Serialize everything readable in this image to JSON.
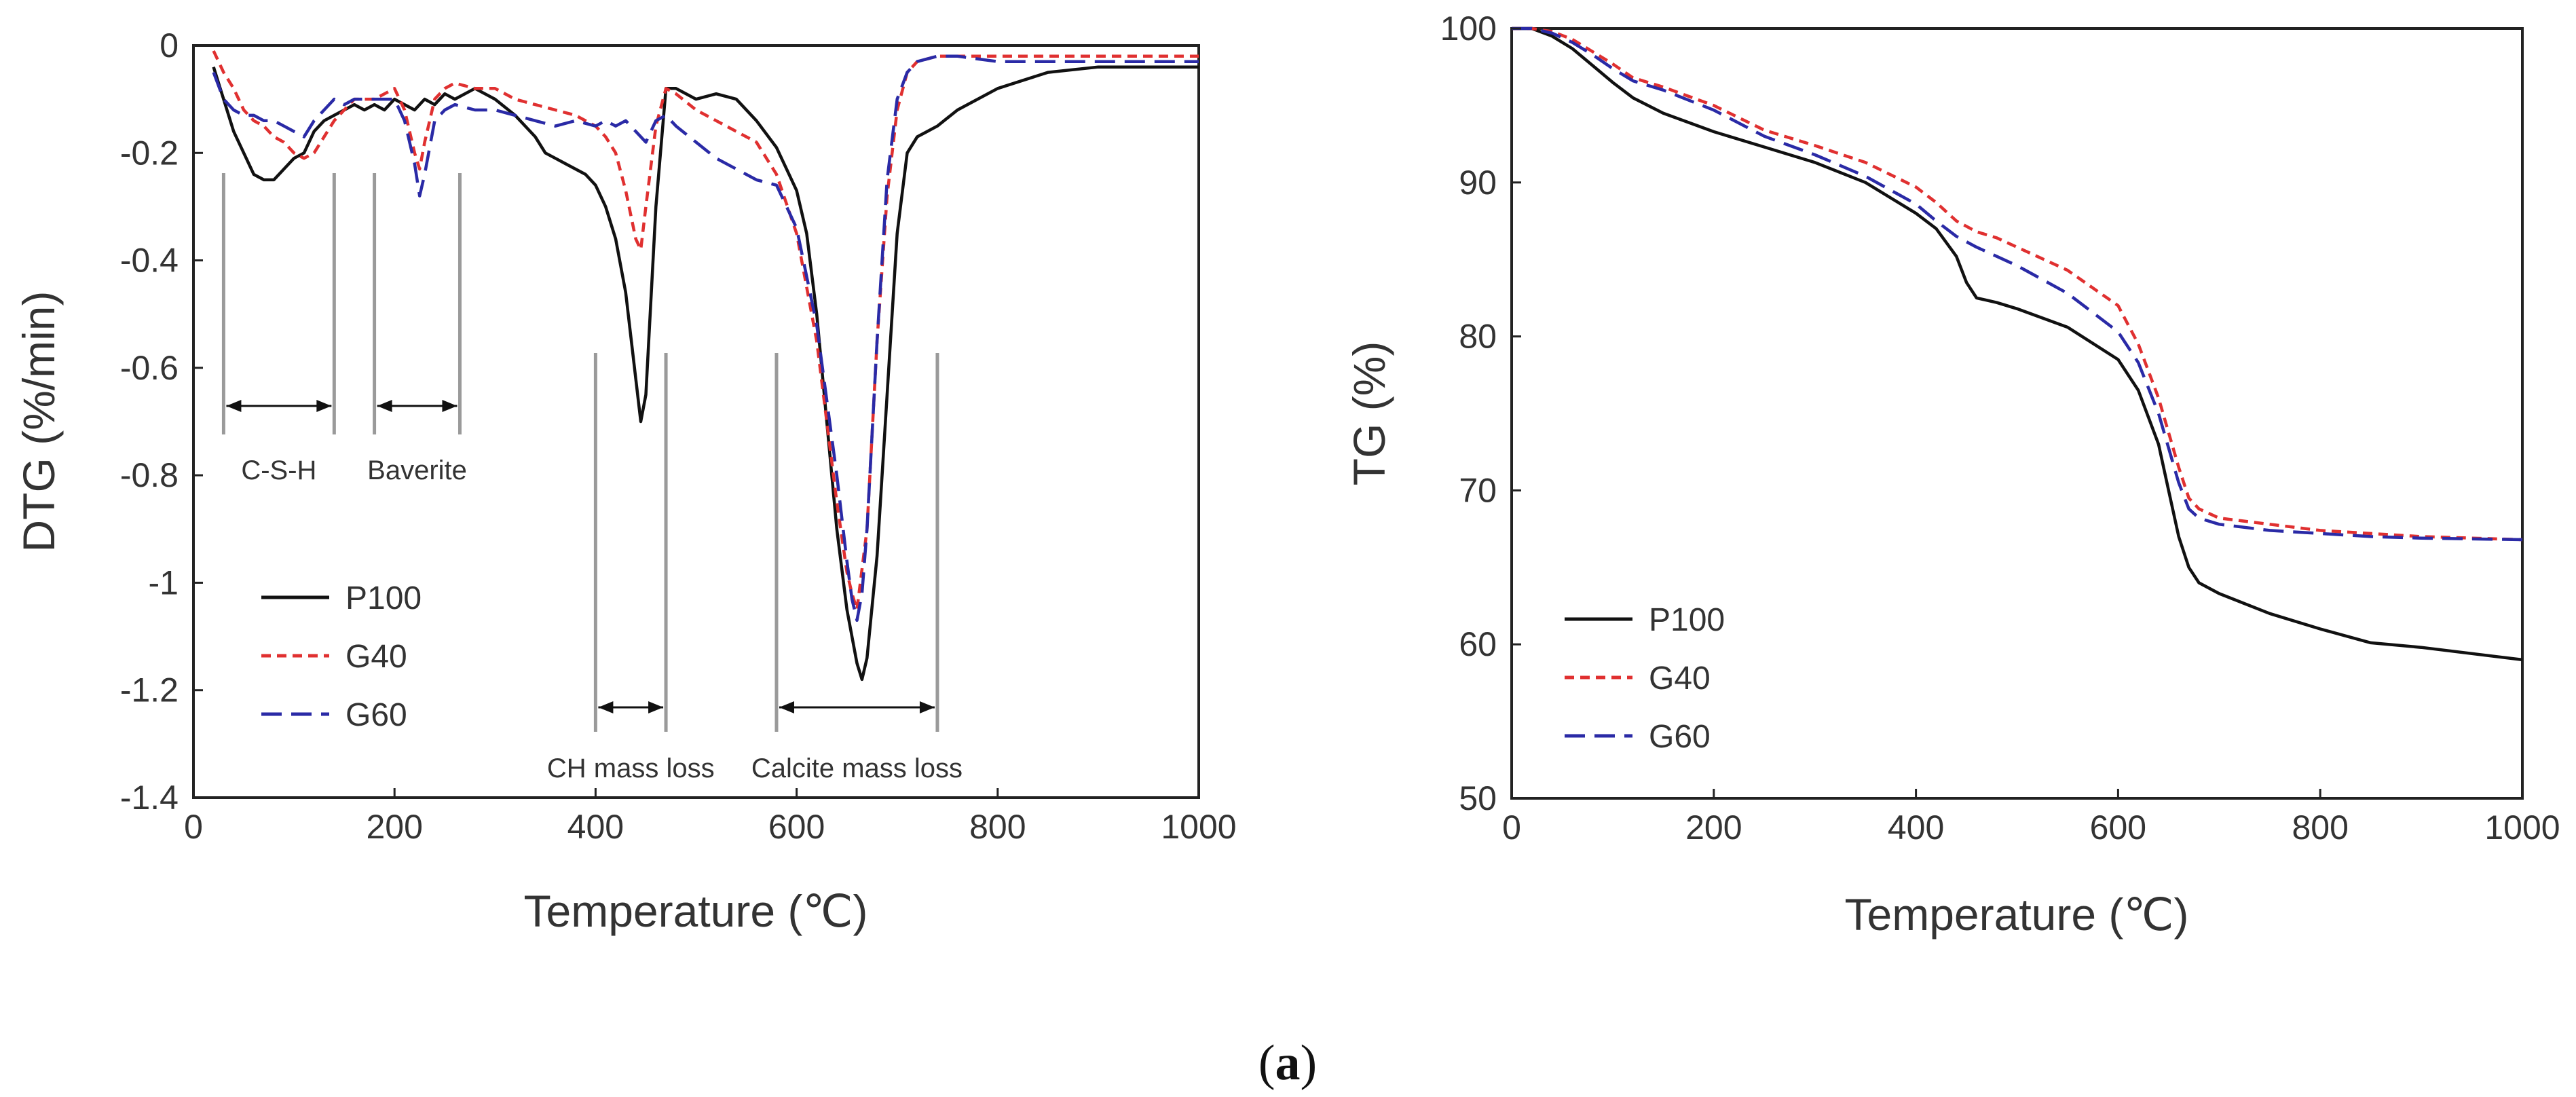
{
  "figure": {
    "caption_label": "a",
    "caption_open": "(",
    "caption_close": ")"
  },
  "chart_data": [
    {
      "type": "line",
      "panel": "left",
      "xlabel": "Temperature (℃)",
      "ylabel": "DTG (%/min)",
      "xlim": [
        0,
        1000
      ],
      "ylim": [
        -1.4,
        0
      ],
      "xticks": [
        0,
        200,
        400,
        600,
        800,
        1000
      ],
      "xtick_labels": [
        "0",
        "200",
        "400",
        "600",
        "800",
        "1000"
      ],
      "yticks": [
        0,
        -0.2,
        -0.4,
        -0.6,
        -0.8,
        -1,
        -1.2,
        -1.4
      ],
      "ytick_labels": [
        "0",
        "-0.2",
        "-0.4",
        "-0.6",
        "-0.8",
        "-1",
        "-1.2",
        "-1.4"
      ],
      "legend_placement": "bottom-left",
      "series": [
        {
          "name": "P100",
          "color": "#111111",
          "dash": "solid",
          "label": "P100",
          "x": [
            20,
            30,
            40,
            50,
            60,
            70,
            80,
            90,
            100,
            110,
            120,
            130,
            140,
            150,
            160,
            170,
            180,
            190,
            200,
            210,
            220,
            230,
            240,
            250,
            260,
            280,
            300,
            320,
            340,
            350,
            360,
            370,
            380,
            390,
            400,
            410,
            420,
            430,
            440,
            445,
            450,
            460,
            470,
            480,
            500,
            520,
            540,
            560,
            580,
            600,
            610,
            620,
            630,
            640,
            650,
            660,
            665,
            670,
            680,
            690,
            700,
            710,
            720,
            730,
            740,
            760,
            800,
            850,
            900,
            950,
            1000
          ],
          "y": [
            -0.04,
            -0.1,
            -0.16,
            -0.2,
            -0.24,
            -0.25,
            -0.25,
            -0.23,
            -0.21,
            -0.2,
            -0.16,
            -0.14,
            -0.13,
            -0.12,
            -0.11,
            -0.12,
            -0.11,
            -0.12,
            -0.1,
            -0.11,
            -0.12,
            -0.1,
            -0.11,
            -0.09,
            -0.1,
            -0.08,
            -0.1,
            -0.13,
            -0.17,
            -0.2,
            -0.21,
            -0.22,
            -0.23,
            -0.24,
            -0.26,
            -0.3,
            -0.36,
            -0.46,
            -0.62,
            -0.7,
            -0.65,
            -0.3,
            -0.08,
            -0.08,
            -0.1,
            -0.09,
            -0.1,
            -0.14,
            -0.19,
            -0.27,
            -0.35,
            -0.5,
            -0.7,
            -0.9,
            -1.05,
            -1.15,
            -1.18,
            -1.14,
            -0.95,
            -0.65,
            -0.35,
            -0.2,
            -0.17,
            -0.16,
            -0.15,
            -0.12,
            -0.08,
            -0.05,
            -0.04,
            -0.04,
            -0.04
          ]
        },
        {
          "name": "G40",
          "color": "#e03030",
          "dash": "short-dash",
          "label": "G40",
          "x": [
            20,
            30,
            40,
            50,
            60,
            70,
            80,
            90,
            100,
            110,
            120,
            130,
            140,
            150,
            160,
            180,
            200,
            210,
            220,
            225,
            230,
            240,
            250,
            260,
            280,
            300,
            320,
            340,
            360,
            380,
            400,
            410,
            420,
            430,
            440,
            445,
            450,
            460,
            470,
            480,
            500,
            520,
            540,
            560,
            580,
            600,
            620,
            640,
            650,
            655,
            660,
            670,
            680,
            690,
            700,
            710,
            720,
            740,
            760,
            800,
            850,
            900,
            950,
            1000
          ],
          "y": [
            -0.01,
            -0.05,
            -0.08,
            -0.12,
            -0.14,
            -0.15,
            -0.17,
            -0.18,
            -0.2,
            -0.21,
            -0.2,
            -0.17,
            -0.14,
            -0.12,
            -0.1,
            -0.1,
            -0.08,
            -0.12,
            -0.2,
            -0.23,
            -0.18,
            -0.1,
            -0.08,
            -0.07,
            -0.08,
            -0.08,
            -0.1,
            -0.11,
            -0.12,
            -0.13,
            -0.15,
            -0.17,
            -0.2,
            -0.27,
            -0.36,
            -0.38,
            -0.3,
            -0.15,
            -0.08,
            -0.09,
            -0.12,
            -0.14,
            -0.16,
            -0.18,
            -0.24,
            -0.35,
            -0.55,
            -0.85,
            -0.98,
            -1.02,
            -1.05,
            -0.9,
            -0.55,
            -0.28,
            -0.12,
            -0.05,
            -0.03,
            -0.02,
            -0.02,
            -0.02,
            -0.02,
            -0.02,
            -0.02,
            -0.02
          ]
        },
        {
          "name": "G60",
          "color": "#2a2aa6",
          "dash": "long-dash",
          "label": "G60",
          "x": [
            20,
            30,
            40,
            50,
            60,
            70,
            80,
            90,
            100,
            110,
            120,
            130,
            140,
            150,
            160,
            180,
            200,
            210,
            220,
            225,
            230,
            240,
            250,
            260,
            280,
            300,
            320,
            340,
            360,
            380,
            400,
            410,
            420,
            430,
            440,
            450,
            460,
            470,
            480,
            500,
            520,
            540,
            560,
            580,
            600,
            620,
            640,
            650,
            655,
            660,
            665,
            670,
            680,
            690,
            700,
            710,
            720,
            740,
            760,
            800,
            850,
            900,
            950,
            1000
          ],
          "y": [
            -0.05,
            -0.1,
            -0.12,
            -0.13,
            -0.13,
            -0.14,
            -0.14,
            -0.15,
            -0.16,
            -0.17,
            -0.14,
            -0.12,
            -0.1,
            -0.11,
            -0.1,
            -0.1,
            -0.1,
            -0.14,
            -0.22,
            -0.28,
            -0.24,
            -0.14,
            -0.12,
            -0.11,
            -0.12,
            -0.12,
            -0.13,
            -0.14,
            -0.15,
            -0.14,
            -0.15,
            -0.14,
            -0.15,
            -0.14,
            -0.16,
            -0.18,
            -0.14,
            -0.13,
            -0.15,
            -0.18,
            -0.21,
            -0.23,
            -0.25,
            -0.26,
            -0.34,
            -0.52,
            -0.8,
            -0.96,
            -1.03,
            -1.07,
            -1.02,
            -0.9,
            -0.55,
            -0.25,
            -0.1,
            -0.05,
            -0.03,
            -0.02,
            -0.02,
            -0.03,
            -0.03,
            -0.03,
            -0.03,
            -0.03
          ]
        }
      ],
      "annotations": [
        {
          "label": "C-S-H",
          "x_start": 30,
          "x_end": 140
        },
        {
          "label": "Baverite",
          "x_start": 180,
          "x_end": 265
        },
        {
          "label": "CH mass loss",
          "x_start": 400,
          "x_end": 470
        },
        {
          "label": "Calcite mass loss",
          "x_start": 580,
          "x_end": 740
        }
      ]
    },
    {
      "type": "line",
      "panel": "right",
      "xlabel": "Temperature (℃)",
      "ylabel": "TG (%)",
      "xlim": [
        0,
        1000
      ],
      "ylim": [
        50,
        100
      ],
      "xticks": [
        0,
        200,
        400,
        600,
        800,
        1000
      ],
      "xtick_labels": [
        "0",
        "200",
        "400",
        "600",
        "800",
        "1000"
      ],
      "yticks": [
        50,
        60,
        70,
        80,
        90,
        100
      ],
      "ytick_labels": [
        "50",
        "60",
        "70",
        "80",
        "90",
        "100"
      ],
      "legend_placement": "bottom-left",
      "series": [
        {
          "name": "P100",
          "color": "#111111",
          "dash": "solid",
          "label": "P100",
          "x": [
            0,
            20,
            40,
            60,
            80,
            100,
            120,
            150,
            200,
            250,
            300,
            350,
            400,
            420,
            440,
            450,
            460,
            480,
            500,
            550,
            600,
            620,
            640,
            650,
            660,
            670,
            680,
            700,
            750,
            800,
            850,
            900,
            1000
          ],
          "y": [
            100,
            100,
            99.5,
            98.7,
            97.6,
            96.5,
            95.5,
            94.5,
            93.3,
            92.3,
            91.3,
            90,
            88,
            87,
            85.2,
            83.5,
            82.5,
            82.2,
            81.8,
            80.6,
            78.5,
            76.5,
            73,
            70,
            67,
            65,
            64,
            63.3,
            62,
            61,
            60.1,
            59.8,
            59
          ]
        },
        {
          "name": "G40",
          "color": "#e03030",
          "dash": "short-dash",
          "label": "G40",
          "x": [
            0,
            20,
            40,
            60,
            80,
            100,
            120,
            150,
            200,
            250,
            300,
            350,
            400,
            420,
            440,
            460,
            480,
            500,
            550,
            600,
            620,
            640,
            660,
            670,
            680,
            700,
            750,
            800,
            850,
            900,
            1000
          ],
          "y": [
            100,
            100,
            99.8,
            99.3,
            98.5,
            97.7,
            96.8,
            96.2,
            95,
            93.4,
            92.4,
            91.3,
            89.7,
            88.7,
            87.5,
            86.8,
            86.4,
            85.8,
            84.3,
            82,
            79.5,
            76,
            71.5,
            69.5,
            68.8,
            68.2,
            67.8,
            67.4,
            67.2,
            67,
            66.8
          ]
        },
        {
          "name": "G60",
          "color": "#2a2aa6",
          "dash": "long-dash",
          "label": "G60",
          "x": [
            0,
            20,
            40,
            60,
            80,
            100,
            120,
            150,
            200,
            250,
            300,
            350,
            400,
            420,
            440,
            460,
            480,
            500,
            550,
            600,
            620,
            640,
            660,
            670,
            680,
            700,
            750,
            800,
            850,
            900,
            1000
          ],
          "y": [
            100,
            100,
            99.7,
            99.1,
            98.3,
            97.4,
            96.6,
            96,
            94.7,
            93,
            91.8,
            90.4,
            88.6,
            87.5,
            86.5,
            85.8,
            85.2,
            84.6,
            82.8,
            80.3,
            78.3,
            75,
            70.5,
            68.8,
            68.2,
            67.8,
            67.4,
            67.2,
            67,
            66.9,
            66.8
          ]
        }
      ]
    }
  ]
}
